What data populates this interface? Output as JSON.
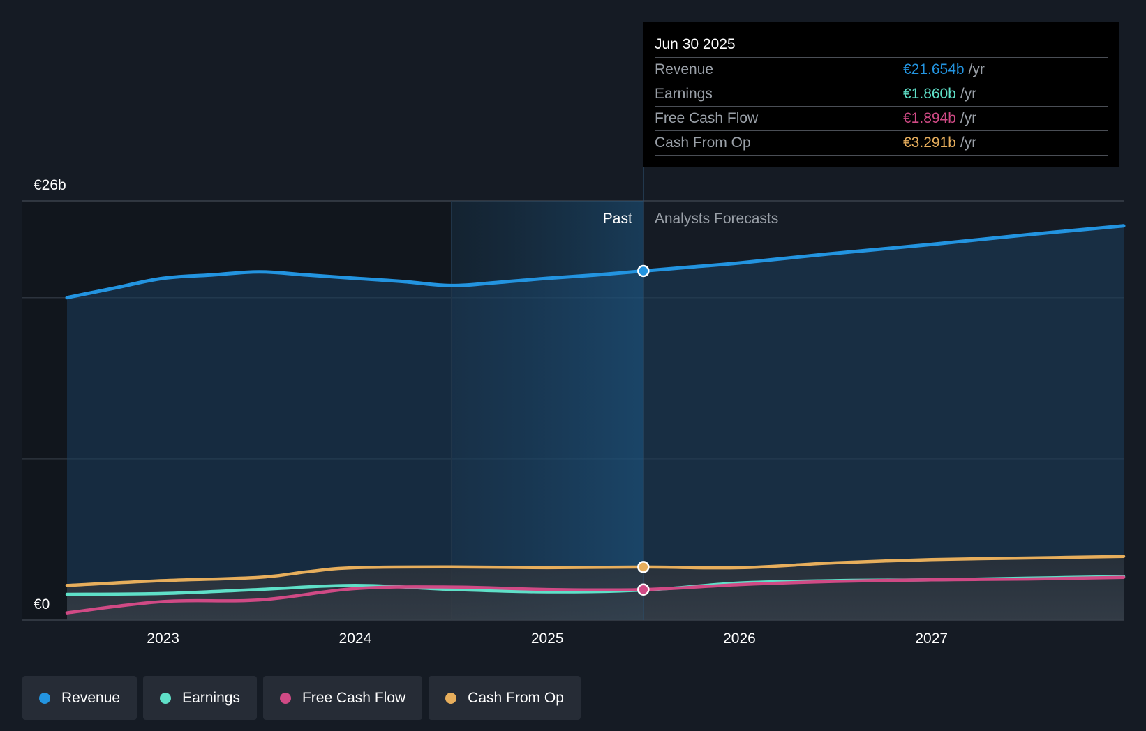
{
  "colors": {
    "background": "#151b24",
    "revenue": "#2394e0",
    "earnings": "#5fe0c8",
    "free_cash_flow": "#d04a85",
    "cash_from_op": "#e7ae5c",
    "grid": "#2c333d"
  },
  "tooltip": {
    "date": "Jun 30 2025",
    "rows": [
      {
        "name": "Revenue",
        "value": "€21.654b",
        "unit": "/yr"
      },
      {
        "name": "Earnings",
        "value": "€1.860b",
        "unit": "/yr"
      },
      {
        "name": "Free Cash Flow",
        "value": "€1.894b",
        "unit": "/yr"
      },
      {
        "name": "Cash From Op",
        "value": "€3.291b",
        "unit": "/yr"
      }
    ]
  },
  "legend": [
    {
      "label": "Revenue",
      "color": "#2394e0"
    },
    {
      "label": "Earnings",
      "color": "#5fe0c8"
    },
    {
      "label": "Free Cash Flow",
      "color": "#d04a85"
    },
    {
      "label": "Cash From Op",
      "color": "#e7ae5c"
    }
  ],
  "chart_data": {
    "type": "line",
    "title": "",
    "xlabel": "",
    "ylabel": "",
    "xlim": [
      2022.5,
      2028.0
    ],
    "ylim": [
      0,
      26
    ],
    "y_axis_labels": [
      "€26b",
      "€0"
    ],
    "x_ticks": [
      2023,
      2024,
      2025,
      2026,
      2027
    ],
    "x_tick_labels": [
      "2023",
      "2024",
      "2025",
      "2026",
      "2027"
    ],
    "past_label": "Past",
    "forecast_label": "Analysts Forecasts",
    "past_shade_start": 2024.5,
    "divider_x": 2025.5,
    "series": [
      {
        "name": "Revenue",
        "key": "revenue",
        "points": [
          [
            2022.5,
            20.0
          ],
          [
            2022.75,
            20.6
          ],
          [
            2023.0,
            21.2
          ],
          [
            2023.25,
            21.4
          ],
          [
            2023.5,
            21.6
          ],
          [
            2023.75,
            21.4
          ],
          [
            2024.0,
            21.2
          ],
          [
            2024.25,
            21.0
          ],
          [
            2024.5,
            20.75
          ],
          [
            2024.75,
            20.95
          ],
          [
            2025.0,
            21.2
          ],
          [
            2025.25,
            21.4
          ],
          [
            2025.5,
            21.654
          ],
          [
            2025.75,
            21.9
          ],
          [
            2026.0,
            22.15
          ],
          [
            2026.5,
            22.75
          ],
          [
            2027.0,
            23.3
          ],
          [
            2027.5,
            23.9
          ],
          [
            2028.0,
            24.45
          ]
        ]
      },
      {
        "name": "Earnings",
        "key": "earnings",
        "points": [
          [
            2022.5,
            1.6
          ],
          [
            2023.0,
            1.65
          ],
          [
            2023.5,
            1.9
          ],
          [
            2024.0,
            2.15
          ],
          [
            2024.5,
            1.9
          ],
          [
            2025.0,
            1.75
          ],
          [
            2025.5,
            1.86
          ],
          [
            2026.0,
            2.3
          ],
          [
            2026.5,
            2.45
          ],
          [
            2027.0,
            2.5
          ],
          [
            2027.5,
            2.6
          ],
          [
            2028.0,
            2.7
          ]
        ]
      },
      {
        "name": "Free Cash Flow",
        "key": "free_cash_flow",
        "points": [
          [
            2022.5,
            0.45
          ],
          [
            2023.0,
            1.15
          ],
          [
            2023.5,
            1.25
          ],
          [
            2024.0,
            1.95
          ],
          [
            2024.5,
            2.05
          ],
          [
            2025.0,
            1.9
          ],
          [
            2025.5,
            1.894
          ],
          [
            2026.0,
            2.2
          ],
          [
            2026.5,
            2.4
          ],
          [
            2027.0,
            2.5
          ],
          [
            2027.5,
            2.55
          ],
          [
            2028.0,
            2.65
          ]
        ]
      },
      {
        "name": "Cash From Op",
        "key": "cash_from_op",
        "points": [
          [
            2022.5,
            2.15
          ],
          [
            2023.0,
            2.45
          ],
          [
            2023.5,
            2.65
          ],
          [
            2023.75,
            3.0
          ],
          [
            2024.0,
            3.25
          ],
          [
            2024.5,
            3.3
          ],
          [
            2025.0,
            3.25
          ],
          [
            2025.5,
            3.291
          ],
          [
            2026.0,
            3.25
          ],
          [
            2026.5,
            3.55
          ],
          [
            2027.0,
            3.75
          ],
          [
            2027.5,
            3.85
          ],
          [
            2028.0,
            3.95
          ]
        ]
      }
    ]
  }
}
